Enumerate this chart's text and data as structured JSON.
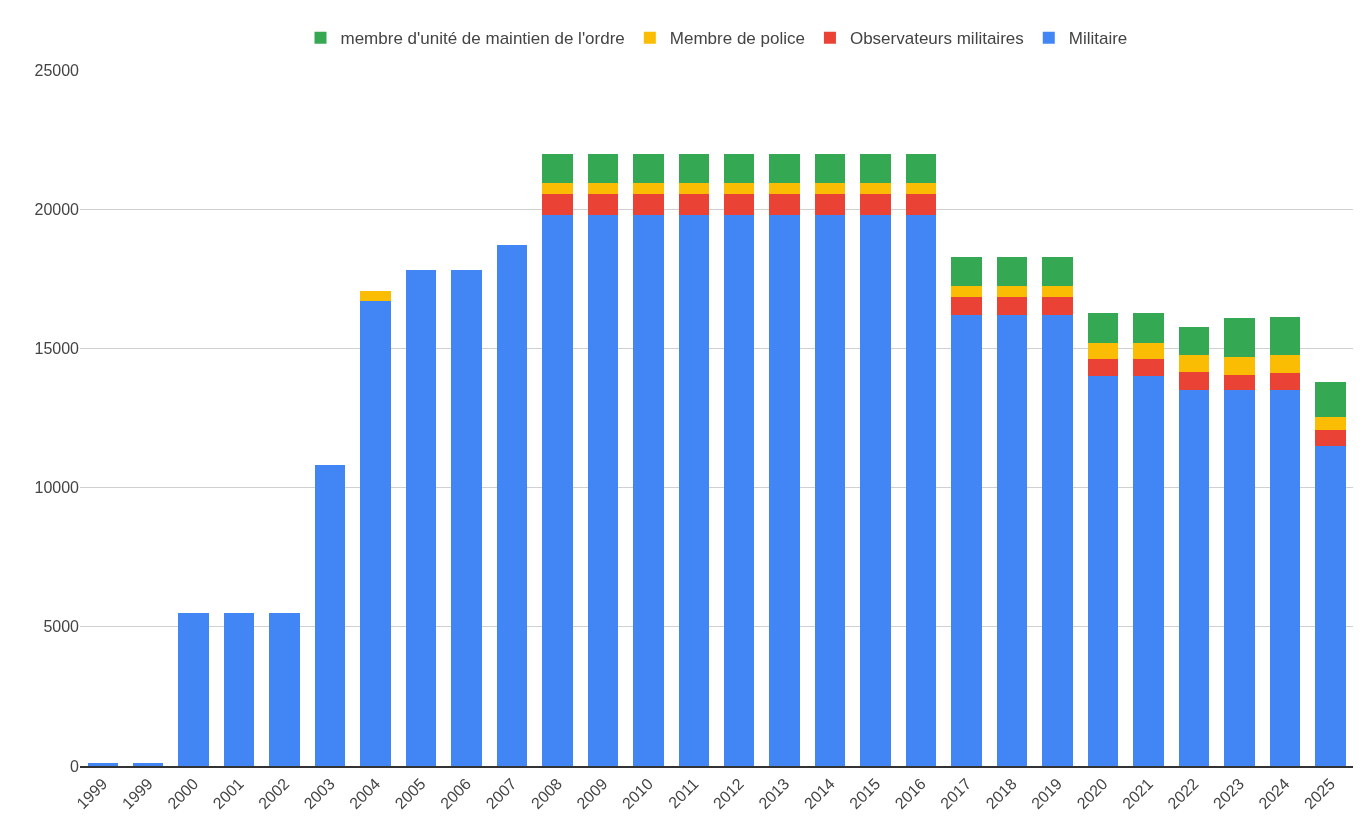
{
  "chart_data": {
    "type": "bar",
    "stacked": true,
    "categories": [
      "1999",
      "1999",
      "2000",
      "2001",
      "2002",
      "2003",
      "2004",
      "2005",
      "2006",
      "2007",
      "2008",
      "2009",
      "2010",
      "2011",
      "2012",
      "2013",
      "2014",
      "2015",
      "2016",
      "2017",
      "2018",
      "2019",
      "2020",
      "2021",
      "2022",
      "2023",
      "2024",
      "2025"
    ],
    "series": [
      {
        "name": "Militaire",
        "color": "#4285f4",
        "values": [
          100,
          100,
          5500,
          5500,
          5500,
          10800,
          16700,
          17800,
          17800,
          18700,
          19800,
          19800,
          19800,
          19800,
          19800,
          19800,
          19800,
          19800,
          19800,
          16200,
          16200,
          16200,
          14000,
          14000,
          13500,
          13500,
          13500,
          11500
        ]
      },
      {
        "name": "Observateurs militaires",
        "color": "#ea4335",
        "values": [
          null,
          null,
          null,
          null,
          null,
          null,
          null,
          null,
          null,
          null,
          750,
          750,
          750,
          750,
          750,
          750,
          750,
          750,
          750,
          650,
          650,
          650,
          620,
          620,
          650,
          550,
          620,
          570
        ]
      },
      {
        "name": "Membre de police",
        "color": "#fbbc04",
        "values": [
          null,
          null,
          null,
          null,
          null,
          null,
          350,
          null,
          null,
          null,
          400,
          400,
          400,
          400,
          400,
          400,
          400,
          400,
          400,
          400,
          400,
          400,
          580,
          580,
          630,
          640,
          630,
          460
        ]
      },
      {
        "name": "membre d'unité de maintien de l'ordre",
        "color": "#34a853",
        "values": [
          null,
          null,
          null,
          null,
          null,
          null,
          null,
          null,
          null,
          null,
          1050,
          1050,
          1050,
          1050,
          1050,
          1050,
          1050,
          1050,
          1050,
          1050,
          1050,
          1050,
          1080,
          1080,
          1000,
          1390,
          1390,
          1260
        ]
      }
    ],
    "ylim": [
      0,
      25000
    ],
    "yticks": [
      0,
      5000,
      10000,
      15000,
      20000,
      25000
    ],
    "grid": "y",
    "legend": "top"
  }
}
